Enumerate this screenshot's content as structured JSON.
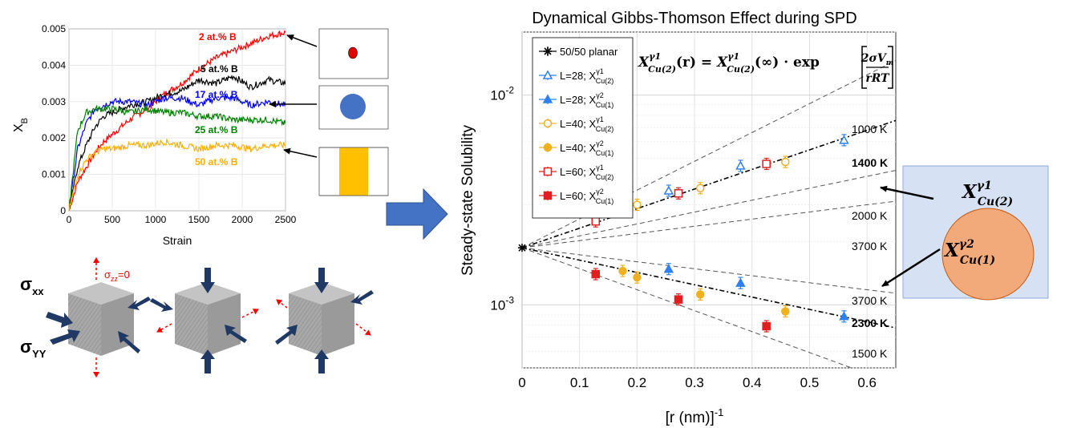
{
  "chart_data": [
    {
      "type": "line",
      "title": "",
      "xlabel": "Strain",
      "ylabel": "X",
      "ylabel_sub": "B",
      "xlim": [
        0,
        2500
      ],
      "ylim": [
        0,
        0.005
      ],
      "xticks": [
        "0",
        "500",
        "1000",
        "1500",
        "2000",
        "2500"
      ],
      "yticks": [
        "0",
        "0.001",
        "0.002",
        "0.003",
        "0.004",
        "0.005"
      ],
      "grid": true,
      "series": [
        {
          "name": "2 at.% B",
          "color": "#ff0000",
          "x": [
            0,
            100,
            200,
            300,
            400,
            500,
            700,
            900,
            1100,
            1300,
            1500,
            1700,
            1900,
            2100,
            2300,
            2500
          ],
          "y": [
            0,
            0.0008,
            0.0012,
            0.0016,
            0.0019,
            0.0021,
            0.0025,
            0.0028,
            0.0032,
            0.0035,
            0.0039,
            0.0042,
            0.0044,
            0.0046,
            0.0048,
            0.0049
          ]
        },
        {
          "name": "5 at.% B",
          "color": "#000000",
          "x": [
            0,
            100,
            200,
            300,
            400,
            500,
            700,
            900,
            1100,
            1300,
            1500,
            1700,
            1900,
            2100,
            2300,
            2500
          ],
          "y": [
            0,
            0.0012,
            0.0018,
            0.0023,
            0.0026,
            0.0027,
            0.0029,
            0.003,
            0.0032,
            0.0033,
            0.0036,
            0.0035,
            0.0037,
            0.0034,
            0.0036,
            0.0035
          ]
        },
        {
          "name": "17 at.% B",
          "color": "#0000ff",
          "x": [
            0,
            100,
            200,
            300,
            400,
            500,
            700,
            900,
            1100,
            1300,
            1500,
            1700,
            1900,
            2100,
            2300,
            2500
          ],
          "y": [
            0,
            0.0017,
            0.0024,
            0.0028,
            0.0029,
            0.003,
            0.003,
            0.0029,
            0.0031,
            0.0031,
            0.0029,
            0.0031,
            0.0031,
            0.0029,
            0.003,
            0.0029
          ]
        },
        {
          "name": "25 at.% B",
          "color": "#008000",
          "x": [
            0,
            100,
            200,
            300,
            400,
            500,
            700,
            900,
            1100,
            1300,
            1500,
            1700,
            1900,
            2100,
            2300,
            2500
          ],
          "y": [
            0,
            0.0022,
            0.0027,
            0.0028,
            0.0028,
            0.0028,
            0.0027,
            0.0028,
            0.0027,
            0.0027,
            0.0026,
            0.0026,
            0.0025,
            0.0025,
            0.0025,
            0.0024
          ]
        },
        {
          "name": "50 at.% B",
          "color": "#ffb000",
          "x": [
            0,
            100,
            200,
            300,
            400,
            500,
            700,
            900,
            1100,
            1300,
            1500,
            1700,
            1900,
            2100,
            2300,
            2500
          ],
          "y": [
            0,
            0.001,
            0.0014,
            0.0016,
            0.0017,
            0.0017,
            0.0018,
            0.0018,
            0.0019,
            0.0018,
            0.0017,
            0.0018,
            0.0018,
            0.0017,
            0.0018,
            0.0018
          ]
        }
      ]
    },
    {
      "type": "scatter",
      "title": "Dynamical Gibbs-Thomson Effect during SPD",
      "xlabel": "[r (nm)]",
      "xlabel_sup": "-1",
      "ylabel": "Steady-state Solubility",
      "xlim": [
        0,
        0.65
      ],
      "ylim": [
        0.0005,
        0.02
      ],
      "log_y": true,
      "grid": true,
      "xticks": [
        "0",
        "0.1",
        "0.2",
        "0.3",
        "0.4",
        "0.5",
        "0.6"
      ],
      "yticks": [
        {
          "base": "10",
          "exp": "-3",
          "value": 0.001
        },
        {
          "base": "10",
          "exp": "-2",
          "value": 0.01
        }
      ],
      "origin_point": {
        "x": 0,
        "y": 0.00187
      },
      "legend": {
        "placement": "top-left",
        "entries": [
          {
            "label": "50/50 planar",
            "marker": "star",
            "color": "#000000"
          },
          {
            "label": "L=28; X",
            "sub": "Cu(2)",
            "sup": "γ1",
            "marker": "triangle-open",
            "color": "#2f80ed"
          },
          {
            "label": "L=28; X",
            "sub": "Cu(1)",
            "sup": "γ2",
            "marker": "triangle-filled",
            "color": "#2f80ed"
          },
          {
            "label": "L=40; X",
            "sub": "Cu(2)",
            "sup": "γ1",
            "marker": "circle-open",
            "color": "#f0b020"
          },
          {
            "label": "L=40; X",
            "sub": "Cu(1)",
            "sup": "γ2",
            "marker": "circle-filled",
            "color": "#f0b020"
          },
          {
            "label": "L=60; X",
            "sub": "Cu(2)",
            "sup": "γ1",
            "marker": "square-open",
            "color": "#e02020"
          },
          {
            "label": "L=60; X",
            "sub": "Cu(1)",
            "sup": "γ2",
            "marker": "square-filled",
            "color": "#e02020"
          }
        ]
      },
      "reference_lines": [
        {
          "label": "1000 K",
          "y_at_0_6": 0.0125,
          "style": "dashed",
          "bold": false
        },
        {
          "label": "1400 K",
          "y_at_0_6": 0.0068,
          "style": "dashdot",
          "bold": true
        },
        {
          "label": "2000 K",
          "y_at_0_6": 0.0041,
          "style": "dashed",
          "bold": false
        },
        {
          "label": "3700 K",
          "y_at_0_6": 0.003,
          "style": "dashed",
          "bold": false
        },
        {
          "label": "3700 K",
          "y_at_0_6": 0.00118,
          "style": "dashed",
          "bold": false
        },
        {
          "label": "2300 K",
          "y_at_0_6": 0.00083,
          "style": "dashdot",
          "bold": true
        },
        {
          "label": "1500 K",
          "y_at_0_6": 0.00047,
          "style": "dashed",
          "bold": false
        }
      ],
      "series": [
        {
          "name": "L=28 γ1 Cu(2)",
          "marker": "triangle-open",
          "color": "#2f80ed",
          "x": [
            0.255,
            0.38,
            0.56
          ],
          "y": [
            0.0035,
            0.0046,
            0.0061
          ]
        },
        {
          "name": "L=28 γ2 Cu(1)",
          "marker": "triangle-filled",
          "color": "#2f80ed",
          "x": [
            0.255,
            0.38,
            0.56
          ],
          "y": [
            0.00148,
            0.00127,
            0.00088
          ]
        },
        {
          "name": "L=40 γ1 Cu(2)",
          "marker": "circle-open",
          "color": "#f0b020",
          "x": [
            0.175,
            0.2,
            0.31,
            0.458
          ],
          "y": [
            0.0028,
            0.003,
            0.0036,
            0.0048
          ]
        },
        {
          "name": "L=40 γ2 Cu(1)",
          "marker": "circle-filled",
          "color": "#f0b020",
          "x": [
            0.175,
            0.2,
            0.31,
            0.458
          ],
          "y": [
            0.00145,
            0.00135,
            0.00112,
            0.00093
          ]
        },
        {
          "name": "L=60 γ1 Cu(2)",
          "marker": "square-open",
          "color": "#e02020",
          "x": [
            0.128,
            0.272,
            0.425
          ],
          "y": [
            0.0025,
            0.0034,
            0.0047
          ]
        },
        {
          "name": "L=60 γ2 Cu(1)",
          "marker": "square-filled",
          "color": "#e02020",
          "x": [
            0.128,
            0.272,
            0.425
          ],
          "y": [
            0.0014,
            0.00106,
            0.00079
          ]
        }
      ]
    }
  ],
  "equation": {
    "lhs": "X",
    "lhs_sup": "γ1",
    "lhs_sub": "Cu(2)",
    "lhs_arg": "(r) = ",
    "rhs": "X",
    "rhs_sup": "γ1",
    "rhs_sub": "Cu(2)",
    "rhs_arg": "(∞) · exp",
    "numerator": "2σV",
    "numerator_sub": "m",
    "denominator": "rRT"
  },
  "loading": {
    "sigma_zz": "σ",
    "sigma_zz_sub": "zz",
    "sigma_zz_value": "=0",
    "sigma_xx": "σ",
    "sigma_xx_sub": "xx",
    "sigma_yy": "σ",
    "sigma_yy_sub": "YY"
  },
  "schematic": {
    "outer_label": "X",
    "outer_sup": "γ1",
    "outer_sub": "Cu(2)",
    "inner_label": "X",
    "inner_sup": "γ2",
    "inner_sub": "Cu(1)",
    "box_color": "#d6e2f3",
    "circle_color": "#f2aa7b"
  },
  "colors": {
    "arrow_blue": "#4472c4",
    "cube_gray": "#a6a6a6",
    "stress_arrow": "#1f3864",
    "dashed_red": "#ff0000"
  }
}
